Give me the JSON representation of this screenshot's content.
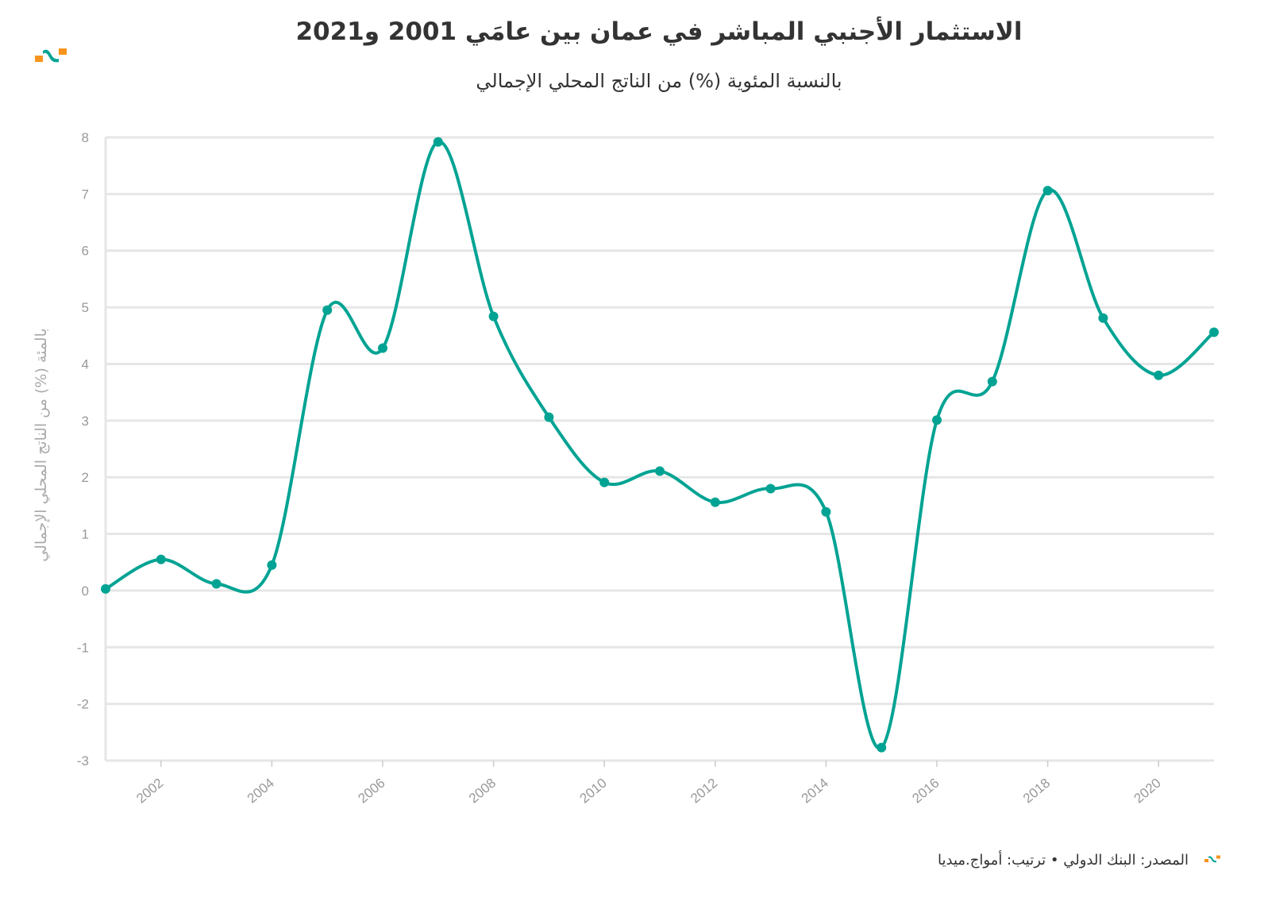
{
  "colors": {
    "line": "#00a393",
    "grid": "#e6e6e6",
    "logo_orange": "#f7941d",
    "logo_teal": "#00a393"
  },
  "logo": "amwaj-media-logo",
  "footer": {
    "text": "المصدر: البنك الدولي • ترتيب: أمواج.ميديا"
  },
  "chart_data": {
    "type": "line",
    "title": "الاستثمار الأجنبي المباشر في عمان بين عامَي 2001 و2021",
    "subtitle": "بالنسبة المئوية (%) من الناتج المحلي الإجمالي",
    "xlabel": "",
    "ylabel": "بالمئة (%) من الناتج المحلي الإجمالي",
    "x": [
      2001,
      2002,
      2003,
      2004,
      2005,
      2006,
      2007,
      2008,
      2009,
      2010,
      2011,
      2012,
      2013,
      2014,
      2015,
      2016,
      2017,
      2018,
      2019,
      2020,
      2021
    ],
    "values": [
      0.03,
      0.55,
      0.12,
      0.45,
      4.95,
      4.28,
      7.92,
      4.84,
      3.06,
      1.91,
      2.11,
      1.56,
      1.8,
      1.39,
      -2.77,
      3.01,
      3.69,
      7.06,
      4.81,
      3.8,
      4.56
    ],
    "xlim": [
      2001,
      2021
    ],
    "ylim": [
      -3,
      8
    ],
    "yticks": [
      "8",
      "7",
      "6",
      "5",
      "4",
      "3",
      "2",
      "1",
      "0",
      "-1",
      "-2",
      "-3"
    ],
    "xticks": [
      "2002",
      "2004",
      "2006",
      "2008",
      "2010",
      "2012",
      "2014",
      "2016",
      "2018",
      "2020"
    ],
    "grid": true,
    "smooth": true
  }
}
